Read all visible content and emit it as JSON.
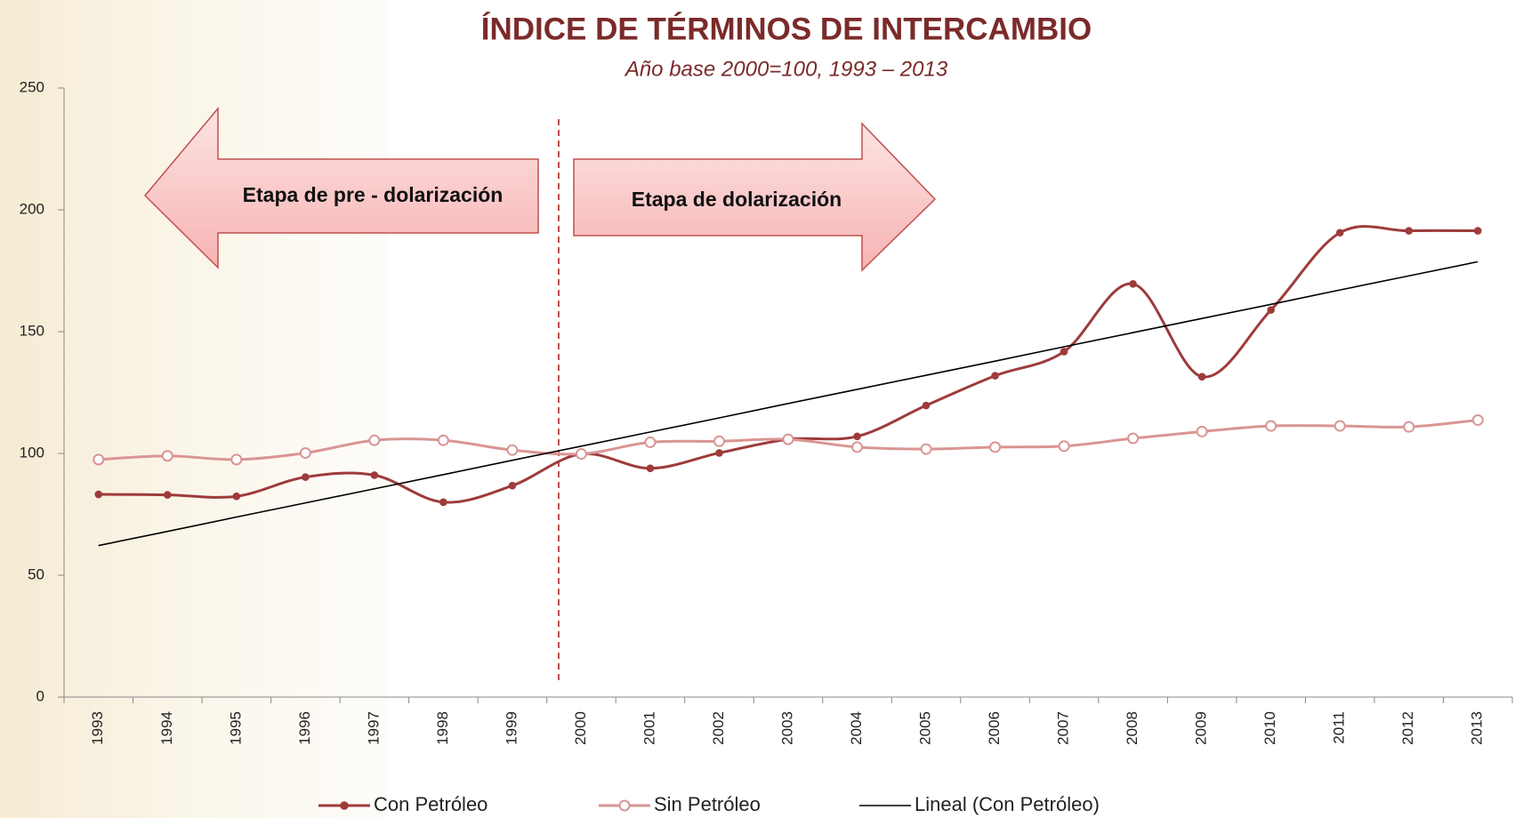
{
  "chart_data": {
    "type": "line",
    "title": "ÍNDICE DE TÉRMINOS DE INTERCAMBIO",
    "subtitle": "Año base 2000=100, 1993 – 2013",
    "annotations": [
      "Etapa de pre - dolarización",
      "Etapa de dolarización"
    ],
    "categories": [
      "1993",
      "1994",
      "1995",
      "1996",
      "1997",
      "1998",
      "1999",
      "2000",
      "2001",
      "2002",
      "2003",
      "2004",
      "2005",
      "2006",
      "2007",
      "2008",
      "2009",
      "2010",
      "2011",
      "2012",
      "2013"
    ],
    "series": [
      {
        "name": "Con Petróleo",
        "color": "#9e3b3b",
        "marker": "filled",
        "smooth": true,
        "values": [
          83.2,
          83,
          82.4,
          90.3,
          91.1,
          80,
          86.8,
          99.8,
          93.9,
          100.2,
          105.8,
          107,
          119.7,
          131.9,
          141.8,
          169.6,
          131.5,
          158.9,
          190.6,
          191.4,
          191.4
        ]
      },
      {
        "name": "Sin Petróleo",
        "color": "#d99594",
        "marker": "hollow",
        "smooth": true,
        "values": [
          97.5,
          99,
          97.5,
          100.2,
          105.4,
          105.4,
          101.4,
          99.8,
          104.6,
          105,
          105.8,
          102.6,
          101.8,
          102.6,
          103,
          106.2,
          109,
          111.3,
          111.3,
          110.9,
          113.7
        ]
      },
      {
        "name": "Lineal (Con Petróleo)",
        "color": "#000000",
        "marker": "none",
        "smooth": false,
        "values": [
          62.2,
          68.0,
          73.9,
          79.7,
          85.5,
          91.3,
          97.2,
          103.0,
          108.8,
          114.6,
          120.5,
          126.3,
          132.1,
          137.9,
          143.8,
          149.6,
          155.4,
          161.2,
          167.1,
          172.9,
          178.7
        ]
      }
    ],
    "ylim": [
      0,
      250
    ],
    "yticks": [
      0,
      50,
      100,
      150,
      200,
      250
    ],
    "grid": false,
    "legend": "bottom"
  }
}
